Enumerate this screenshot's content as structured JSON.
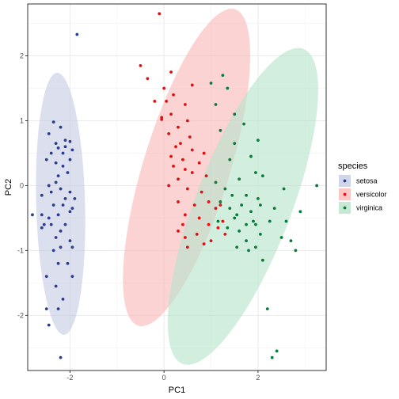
{
  "chart_data": {
    "type": "scatter",
    "xlabel": "PC1",
    "ylabel": "PC2",
    "xlim": [
      -2.9,
      3.45
    ],
    "ylim": [
      -2.85,
      2.8
    ],
    "x_ticks": [
      -2,
      0,
      2
    ],
    "y_ticks": [
      -2,
      -1,
      0,
      1,
      2
    ],
    "grid": true,
    "legend": {
      "title": "species",
      "position": "right"
    },
    "series": [
      {
        "name": "setosa",
        "color": "#2b3d8f",
        "fill": "#c5cbe3",
        "ellipse": {
          "cx": -2.2,
          "cy": -0.28,
          "rx": 0.52,
          "ry": 2.02,
          "angle": -1.5
        },
        "points": [
          [
            -1.85,
            2.33
          ],
          [
            -2.35,
            0.98
          ],
          [
            -2.2,
            0.9
          ],
          [
            -2.45,
            0.8
          ],
          [
            -2.3,
            0.65
          ],
          [
            -2.1,
            0.7
          ],
          [
            -2.0,
            0.68
          ],
          [
            -1.95,
            0.55
          ],
          [
            -2.1,
            0.6
          ],
          [
            -2.25,
            0.58
          ],
          [
            -2.4,
            0.5
          ],
          [
            -2.15,
            0.5
          ],
          [
            -2.3,
            0.35
          ],
          [
            -2.5,
            0.4
          ],
          [
            -2.0,
            0.4
          ],
          [
            -2.15,
            0.3
          ],
          [
            -2.05,
            0.2
          ],
          [
            -2.25,
            0.15
          ],
          [
            -2.3,
            0.05
          ],
          [
            -2.45,
            0.0
          ],
          [
            -2.6,
            -0.15
          ],
          [
            -2.4,
            -0.1
          ],
          [
            -2.2,
            -0.05
          ],
          [
            -2.0,
            -0.1
          ],
          [
            -1.9,
            -0.2
          ],
          [
            -2.1,
            -0.2
          ],
          [
            -2.15,
            -0.3
          ],
          [
            -2.35,
            -0.3
          ],
          [
            -2.8,
            -0.45
          ],
          [
            -2.6,
            -0.45
          ],
          [
            -2.45,
            -0.5
          ],
          [
            -2.0,
            -0.4
          ],
          [
            -1.95,
            -0.35
          ],
          [
            -2.25,
            -0.45
          ],
          [
            -2.4,
            -0.6
          ],
          [
            -2.1,
            -0.6
          ],
          [
            -2.2,
            -0.7
          ],
          [
            -2.55,
            -0.6
          ],
          [
            -2.6,
            -0.65
          ],
          [
            -2.3,
            -0.8
          ],
          [
            -2.0,
            -0.85
          ],
          [
            -1.95,
            -0.95
          ],
          [
            -2.2,
            -0.95
          ],
          [
            -2.35,
            -1.0
          ],
          [
            -2.25,
            -1.2
          ],
          [
            -2.05,
            -1.2
          ],
          [
            -2.5,
            -1.4
          ],
          [
            -2.3,
            -1.55
          ],
          [
            -1.95,
            -1.4
          ],
          [
            -2.15,
            -1.75
          ],
          [
            -2.25,
            -1.9
          ],
          [
            -2.5,
            -1.9
          ],
          [
            -2.45,
            -2.15
          ],
          [
            -2.2,
            -2.65
          ]
        ]
      },
      {
        "name": "versicolor",
        "color": "#dd1111",
        "fill": "#f9b8b8",
        "ellipse": {
          "cx": 0.48,
          "cy": 0.28,
          "rx": 0.92,
          "ry": 2.55,
          "angle": 17
        },
        "points": [
          [
            -0.1,
            2.65
          ],
          [
            -0.5,
            1.85
          ],
          [
            0.15,
            1.75
          ],
          [
            -0.35,
            1.65
          ],
          [
            0.0,
            1.5
          ],
          [
            -0.2,
            1.3
          ],
          [
            0.05,
            1.3
          ],
          [
            0.6,
            1.55
          ],
          [
            0.2,
            1.4
          ],
          [
            0.45,
            1.25
          ],
          [
            0.15,
            1.1
          ],
          [
            0.5,
            1.0
          ],
          [
            -0.05,
            1.05
          ],
          [
            -0.05,
            1.02
          ],
          [
            0.3,
            0.9
          ],
          [
            0.1,
            0.8
          ],
          [
            0.55,
            0.75
          ],
          [
            0.35,
            0.65
          ],
          [
            0.25,
            0.6
          ],
          [
            0.6,
            0.55
          ],
          [
            0.85,
            0.5
          ],
          [
            0.15,
            0.45
          ],
          [
            0.4,
            0.4
          ],
          [
            0.75,
            0.35
          ],
          [
            0.2,
            0.3
          ],
          [
            0.45,
            0.25
          ],
          [
            0.6,
            0.2
          ],
          [
            0.9,
            0.15
          ],
          [
            0.3,
            0.1
          ],
          [
            0.1,
            0.0
          ],
          [
            0.5,
            -0.05
          ],
          [
            0.8,
            -0.1
          ],
          [
            0.3,
            -0.25
          ],
          [
            0.65,
            -0.3
          ],
          [
            0.95,
            -0.25
          ],
          [
            1.1,
            -0.35
          ],
          [
            0.45,
            -0.45
          ],
          [
            0.75,
            -0.5
          ],
          [
            1.25,
            -0.55
          ],
          [
            0.4,
            -0.6
          ],
          [
            0.95,
            -0.6
          ],
          [
            1.15,
            -0.65
          ],
          [
            0.7,
            -0.75
          ],
          [
            0.45,
            -0.8
          ],
          [
            1.3,
            -0.75
          ],
          [
            0.85,
            -0.9
          ],
          [
            0.5,
            -0.95
          ],
          [
            0.3,
            -0.7
          ],
          [
            1.0,
            -0.85
          ],
          [
            1.2,
            -0.3
          ]
        ]
      },
      {
        "name": "virginica",
        "color": "#0a7a3a",
        "fill": "#b6e3cb",
        "ellipse": {
          "cx": 1.68,
          "cy": -0.32,
          "rx": 1.02,
          "ry": 2.6,
          "angle": 21
        },
        "points": [
          [
            1.25,
            1.7
          ],
          [
            1.0,
            1.58
          ],
          [
            1.35,
            1.5
          ],
          [
            1.1,
            1.25
          ],
          [
            1.5,
            1.1
          ],
          [
            1.7,
            0.95
          ],
          [
            1.2,
            0.85
          ],
          [
            2.0,
            0.7
          ],
          [
            1.5,
            0.65
          ],
          [
            1.85,
            0.45
          ],
          [
            1.4,
            0.4
          ],
          [
            1.95,
            0.2
          ],
          [
            2.1,
            0.15
          ],
          [
            1.6,
            0.1
          ],
          [
            1.1,
            0.05
          ],
          [
            1.3,
            -0.05
          ],
          [
            2.55,
            -0.05
          ],
          [
            1.75,
            -0.15
          ],
          [
            1.2,
            -0.25
          ],
          [
            2.35,
            -0.35
          ],
          [
            1.65,
            -0.3
          ],
          [
            1.85,
            -0.4
          ],
          [
            2.9,
            -0.4
          ],
          [
            1.5,
            -0.5
          ],
          [
            2.25,
            -0.55
          ],
          [
            1.75,
            -0.6
          ],
          [
            1.95,
            -0.6
          ],
          [
            1.35,
            -0.65
          ],
          [
            1.6,
            -0.7
          ],
          [
            2.05,
            -0.75
          ],
          [
            1.75,
            -0.85
          ],
          [
            2.7,
            -0.85
          ],
          [
            2.5,
            -0.8
          ],
          [
            1.8,
            -1.0
          ],
          [
            1.95,
            -0.95
          ],
          [
            1.55,
            -0.95
          ],
          [
            2.1,
            -1.15
          ],
          [
            2.8,
            -1.0
          ],
          [
            3.25,
            0.0
          ],
          [
            2.2,
            -1.9
          ],
          [
            2.4,
            -2.55
          ],
          [
            2.3,
            -2.65
          ],
          [
            1.4,
            -0.35
          ],
          [
            2.05,
            -0.3
          ],
          [
            1.15,
            -0.55
          ],
          [
            1.45,
            -0.15
          ],
          [
            2.0,
            -0.2
          ],
          [
            2.6,
            -0.55
          ],
          [
            1.9,
            -0.55
          ],
          [
            1.55,
            -0.45
          ]
        ]
      }
    ]
  }
}
